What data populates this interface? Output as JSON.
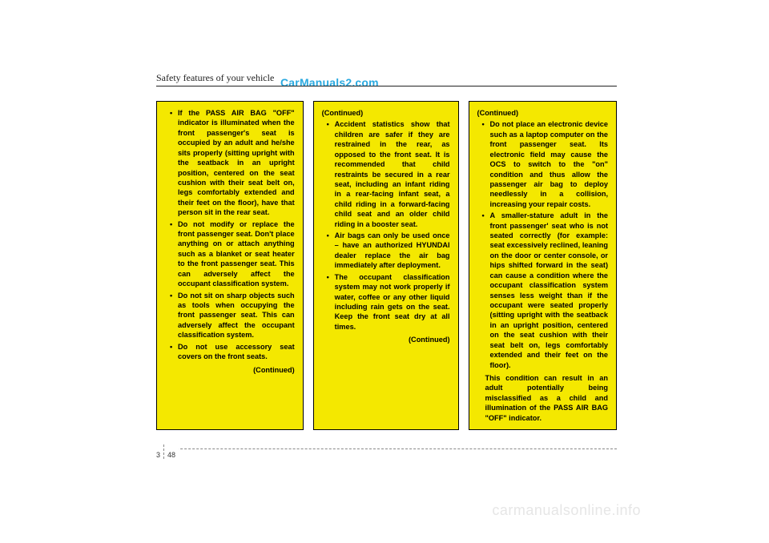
{
  "watermarks": {
    "top": "CarManuals2.com",
    "bottom": "carmanualsonline.info"
  },
  "header": {
    "section_title": "Safety features of your vehicle"
  },
  "columns": {
    "col1": {
      "items": [
        "If the PASS AIR BAG \"OFF\" indicator is illuminated when the front passenger's seat is occupied by an adult and  he/she sits properly (sitting upright with the seatback in an upright position, centered on the seat cushion with their seat belt on, legs comfortably extended and their feet on the floor), have that person sit in the rear seat.",
        "Do not modify or replace the front passenger seat. Don't place anything on or attach anything such as a blanket or seat heater to the front passenger seat. This can adversely affect the occupant classification system.",
        "Do not sit on sharp objects such as tools when occupying the front passenger seat. This can adversely affect the occupant classification system.",
        "Do not use accessory seat covers on the front seats."
      ],
      "continued": "(Continued)"
    },
    "col2": {
      "continued_top": "(Continued)",
      "items": [
        "Accident statistics show that children are safer if they are restrained in the rear, as opposed to the front seat. It is recommended that child restraints be secured in a rear seat, including an infant riding in a rear-facing infant seat, a child riding in a forward-facing child seat and an older child riding in a booster seat.",
        "Air bags can only be used once – have an authorized HYUNDAI dealer replace the air bag immediately after deployment.",
        "The occupant classification system may not work properly if water, coffee or any other liquid including rain gets on the seat. Keep the front seat dry at all times."
      ],
      "continued": "(Continued)"
    },
    "col3": {
      "continued_top": "(Continued)",
      "items": [
        "Do not place an electronic device such as a laptop computer on the front passenger seat.  Its electronic field may cause the OCS to switch to the \"on\" condition and thus allow the passenger air bag to deploy needlessly in a collision, increasing your repair costs.",
        "A smaller-stature adult in the front passenger' seat who is not seated correctly (for example: seat excessively reclined, leaning on the door or center console, or hips shifted forward in the seat) can cause a condition where the occupant classification system senses less weight than if the occupant were seated properly (sitting upright with the seatback in an upright position, centered on the seat cushion with their seat belt on, legs comfortably extended and their feet on the floor)."
      ],
      "trailing": "This condition can result in an adult potentially being misclassified as a child and illumination of the PASS AIR BAG \"OFF\" indicator."
    }
  },
  "page": {
    "chapter": "3",
    "number": "48"
  },
  "colors": {
    "warning_bg": "#f4e800",
    "link_blue": "#2aa9e0"
  }
}
